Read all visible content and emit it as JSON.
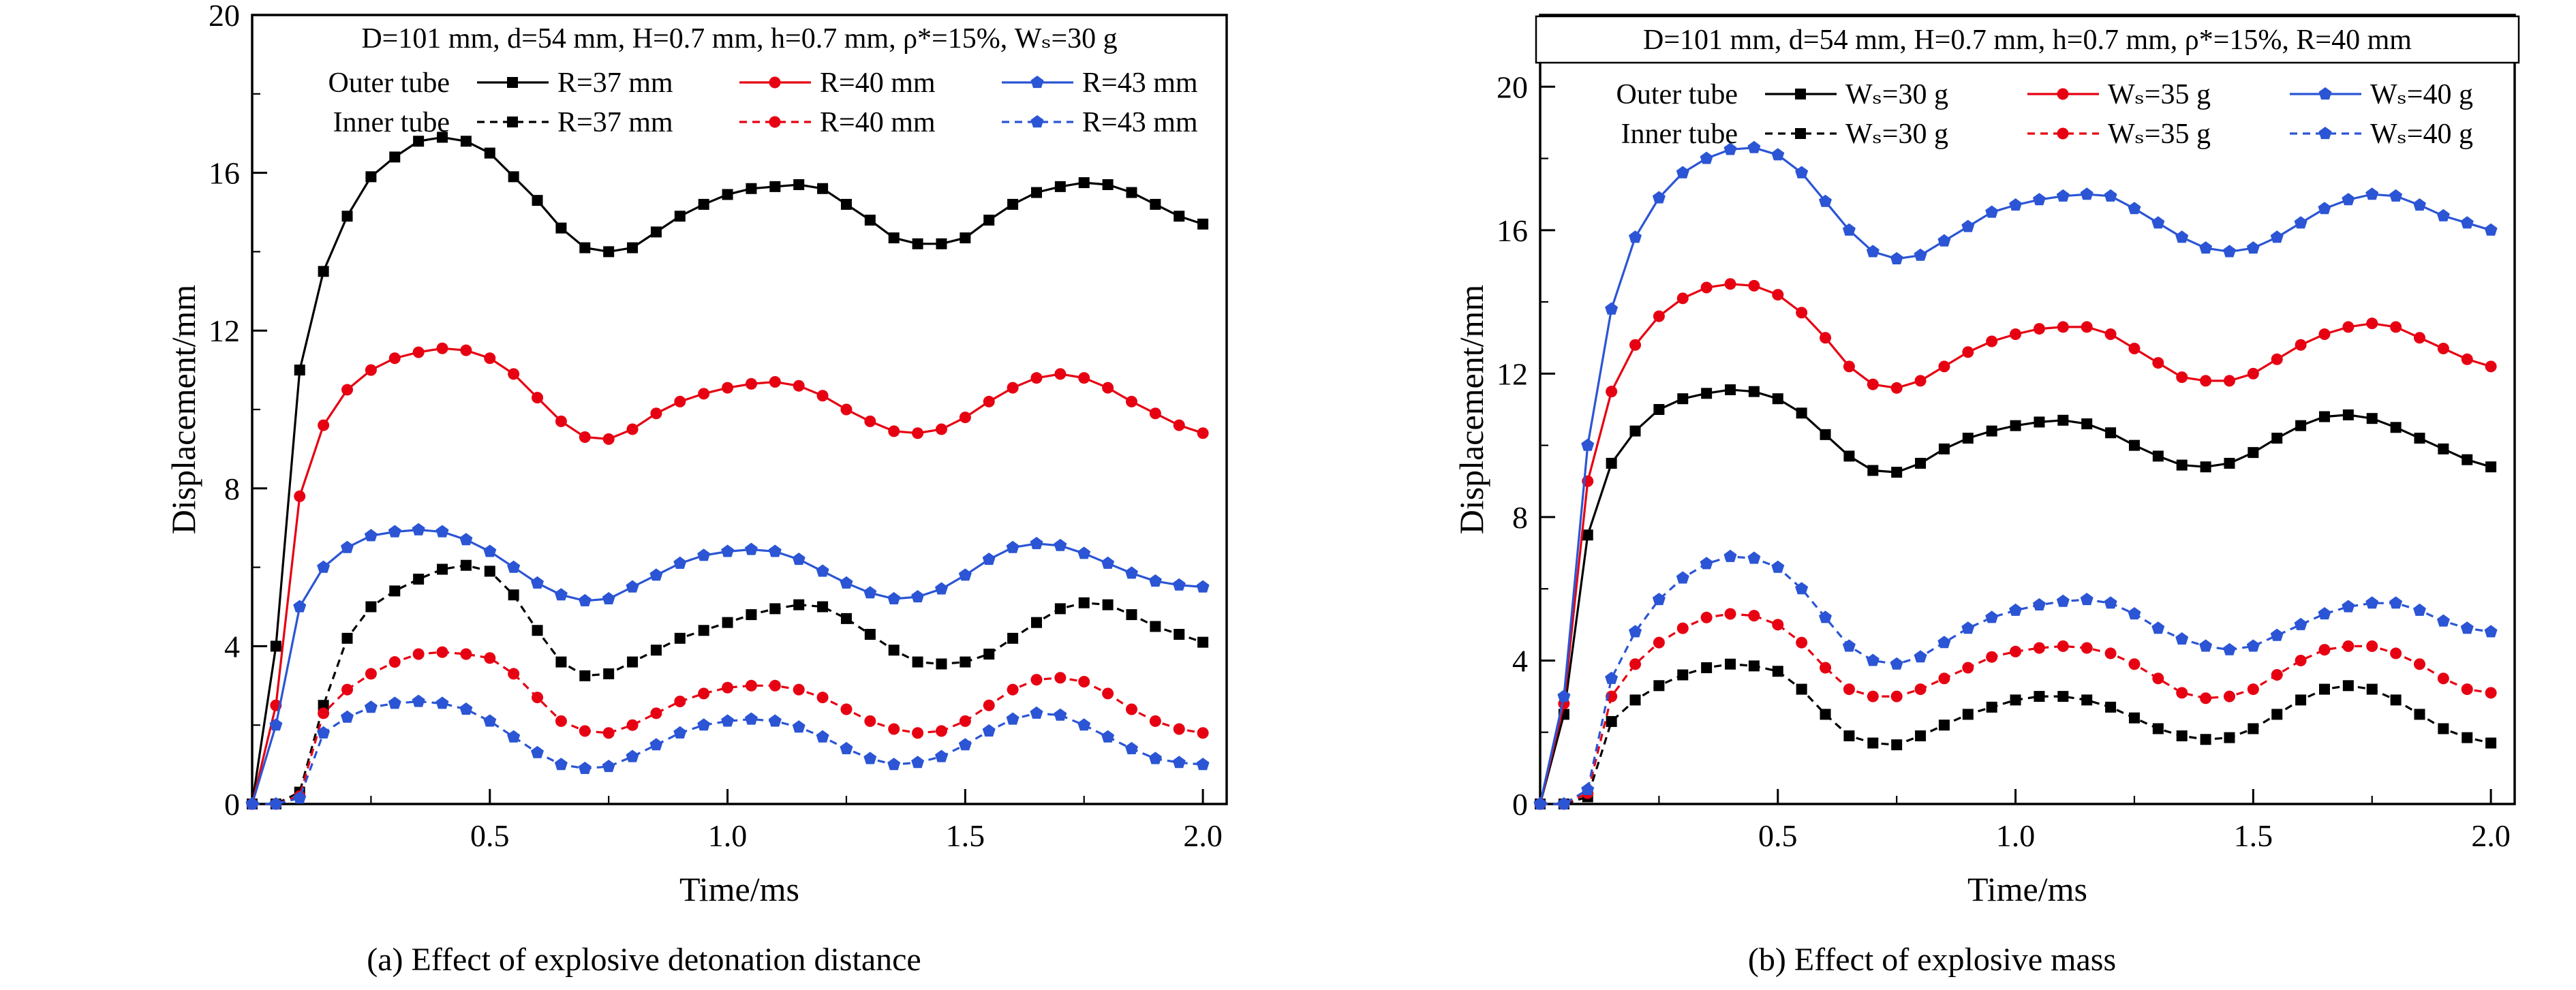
{
  "page": {
    "background": "#ffffff"
  },
  "chart_data": [
    {
      "id": "chart-a",
      "type": "line",
      "caption": "(a) Effect of explosive detonation distance",
      "params_text": "D=101 mm, d=54 mm, H=0.7 mm, h=0.7 mm, ρ*=15%, Wₛ=30 g",
      "legend_frame": false,
      "legend_position": "top-inside",
      "legend_groups": [
        "Outer tube",
        "Inner tube"
      ],
      "xlabel": "Time/ms",
      "ylabel": "Displacement/mm",
      "xlim": [
        0,
        2.05
      ],
      "ylim": [
        0,
        20
      ],
      "grid": false,
      "xticks": [
        0.5,
        1.0,
        1.5,
        2.0
      ],
      "xtick_labels": [
        "0.5",
        "1.0",
        "1.5",
        "2.0"
      ],
      "yticks": [
        0,
        4,
        8,
        12,
        16,
        20
      ],
      "ytick_labels": [
        "0",
        "4",
        "8",
        "12",
        "16",
        "20"
      ],
      "xminor": [
        0.25,
        0.75,
        1.25,
        1.75
      ],
      "yminor": [
        2,
        6,
        10,
        14,
        18
      ],
      "x": [
        0,
        0.05,
        0.1,
        0.15,
        0.2,
        0.25,
        0.3,
        0.35,
        0.4,
        0.45,
        0.5,
        0.55,
        0.6,
        0.65,
        0.7,
        0.75,
        0.8,
        0.85,
        0.9,
        0.95,
        1.0,
        1.05,
        1.1,
        1.15,
        1.2,
        1.25,
        1.3,
        1.35,
        1.4,
        1.45,
        1.5,
        1.55,
        1.6,
        1.65,
        1.7,
        1.75,
        1.8,
        1.85,
        1.9,
        1.95,
        2.0
      ],
      "series": [
        {
          "name": "outer-tube-R37",
          "legend_label": "R=37 mm",
          "color": "#000000",
          "marker": "square",
          "dashed": false,
          "y": [
            0,
            4.0,
            11.0,
            13.5,
            14.9,
            15.9,
            16.4,
            16.8,
            16.9,
            16.8,
            16.5,
            15.9,
            15.3,
            14.6,
            14.1,
            14.0,
            14.1,
            14.5,
            14.9,
            15.2,
            15.45,
            15.6,
            15.65,
            15.7,
            15.6,
            15.2,
            14.8,
            14.35,
            14.2,
            14.2,
            14.35,
            14.8,
            15.2,
            15.5,
            15.65,
            15.75,
            15.7,
            15.5,
            15.2,
            14.9,
            14.7
          ]
        },
        {
          "name": "outer-tube-R40",
          "legend_label": "R=40 mm",
          "color": "#e60012",
          "marker": "circle",
          "dashed": false,
          "y": [
            0,
            2.5,
            7.8,
            9.6,
            10.5,
            11.0,
            11.3,
            11.45,
            11.55,
            11.5,
            11.3,
            10.9,
            10.3,
            9.7,
            9.3,
            9.25,
            9.5,
            9.9,
            10.2,
            10.4,
            10.55,
            10.65,
            10.7,
            10.6,
            10.35,
            10.0,
            9.7,
            9.45,
            9.4,
            9.5,
            9.8,
            10.2,
            10.55,
            10.8,
            10.9,
            10.8,
            10.55,
            10.2,
            9.9,
            9.6,
            9.4
          ]
        },
        {
          "name": "outer-tube-R43",
          "legend_label": "R=43 mm",
          "color": "#2b55d4",
          "marker": "pentagon",
          "dashed": false,
          "y": [
            0,
            2.0,
            5.0,
            6.0,
            6.5,
            6.8,
            6.9,
            6.95,
            6.9,
            6.7,
            6.4,
            6.0,
            5.6,
            5.3,
            5.15,
            5.2,
            5.5,
            5.8,
            6.1,
            6.3,
            6.4,
            6.45,
            6.4,
            6.2,
            5.9,
            5.6,
            5.35,
            5.2,
            5.25,
            5.45,
            5.8,
            6.2,
            6.5,
            6.6,
            6.55,
            6.35,
            6.1,
            5.85,
            5.65,
            5.55,
            5.5
          ]
        },
        {
          "name": "inner-tube-R37",
          "legend_label": "R=37 mm",
          "color": "#000000",
          "marker": "square",
          "dashed": true,
          "y": [
            0,
            0,
            0.3,
            2.5,
            4.2,
            5.0,
            5.4,
            5.7,
            5.95,
            6.05,
            5.9,
            5.3,
            4.4,
            3.6,
            3.25,
            3.3,
            3.6,
            3.9,
            4.2,
            4.4,
            4.6,
            4.8,
            4.95,
            5.05,
            5.0,
            4.7,
            4.3,
            3.9,
            3.6,
            3.55,
            3.6,
            3.8,
            4.2,
            4.6,
            4.95,
            5.1,
            5.05,
            4.8,
            4.5,
            4.3,
            4.1
          ]
        },
        {
          "name": "inner-tube-R40",
          "legend_label": "R=40 mm",
          "color": "#e60012",
          "marker": "circle",
          "dashed": true,
          "y": [
            0,
            0,
            0.2,
            2.3,
            2.9,
            3.3,
            3.6,
            3.8,
            3.85,
            3.8,
            3.7,
            3.3,
            2.7,
            2.1,
            1.85,
            1.8,
            2.0,
            2.3,
            2.6,
            2.8,
            2.95,
            3.0,
            3.0,
            2.9,
            2.7,
            2.4,
            2.1,
            1.9,
            1.8,
            1.85,
            2.1,
            2.5,
            2.9,
            3.15,
            3.2,
            3.1,
            2.8,
            2.4,
            2.1,
            1.9,
            1.8
          ]
        },
        {
          "name": "inner-tube-R43",
          "legend_label": "R=43 mm",
          "color": "#2b55d4",
          "marker": "pentagon",
          "dashed": true,
          "y": [
            0,
            0,
            0.15,
            1.8,
            2.2,
            2.45,
            2.55,
            2.6,
            2.55,
            2.4,
            2.1,
            1.7,
            1.3,
            1.0,
            0.9,
            0.95,
            1.2,
            1.5,
            1.8,
            2.0,
            2.1,
            2.15,
            2.1,
            1.95,
            1.7,
            1.4,
            1.15,
            1.0,
            1.05,
            1.2,
            1.5,
            1.85,
            2.15,
            2.3,
            2.25,
            2.0,
            1.7,
            1.4,
            1.15,
            1.05,
            1.0
          ]
        }
      ]
    },
    {
      "id": "chart-b",
      "type": "line",
      "caption": "(b) Effect of explosive mass",
      "params_text": "D=101 mm, d=54 mm, H=0.7 mm, h=0.7 mm, ρ*=15%, R=40 mm",
      "legend_frame": true,
      "legend_position": "top-inside",
      "legend_groups": [
        "Outer tube",
        "Inner tube"
      ],
      "xlabel": "Time/ms",
      "ylabel": "Displacement/mm",
      "xlim": [
        0,
        2.05
      ],
      "ylim": [
        0,
        22
      ],
      "grid": false,
      "xticks": [
        0.5,
        1.0,
        1.5,
        2.0
      ],
      "xtick_labels": [
        "0.5",
        "1.0",
        "1.5",
        "2.0"
      ],
      "yticks": [
        0,
        4,
        8,
        12,
        16,
        20
      ],
      "ytick_labels": [
        "0",
        "4",
        "8",
        "12",
        "16",
        "20"
      ],
      "xminor": [
        0.25,
        0.75,
        1.25,
        1.75
      ],
      "yminor": [
        2,
        6,
        10,
        14,
        18
      ],
      "x": [
        0,
        0.05,
        0.1,
        0.15,
        0.2,
        0.25,
        0.3,
        0.35,
        0.4,
        0.45,
        0.5,
        0.55,
        0.6,
        0.65,
        0.7,
        0.75,
        0.8,
        0.85,
        0.9,
        0.95,
        1.0,
        1.05,
        1.1,
        1.15,
        1.2,
        1.25,
        1.3,
        1.35,
        1.4,
        1.45,
        1.5,
        1.55,
        1.6,
        1.65,
        1.7,
        1.75,
        1.8,
        1.85,
        1.9,
        1.95,
        2.0
      ],
      "series": [
        {
          "name": "outer-tube-Ws30",
          "legend_label": "Wₛ=30 g",
          "color": "#000000",
          "marker": "square",
          "dashed": false,
          "y": [
            0,
            2.5,
            7.5,
            9.5,
            10.4,
            11.0,
            11.3,
            11.45,
            11.55,
            11.5,
            11.3,
            10.9,
            10.3,
            9.7,
            9.3,
            9.25,
            9.5,
            9.9,
            10.2,
            10.4,
            10.55,
            10.65,
            10.7,
            10.6,
            10.35,
            10.0,
            9.7,
            9.45,
            9.4,
            9.5,
            9.8,
            10.2,
            10.55,
            10.8,
            10.85,
            10.75,
            10.5,
            10.2,
            9.9,
            9.6,
            9.4
          ]
        },
        {
          "name": "outer-tube-Ws35",
          "legend_label": "Wₛ=35 g",
          "color": "#e60012",
          "marker": "circle",
          "dashed": false,
          "y": [
            0,
            2.8,
            9.0,
            11.5,
            12.8,
            13.6,
            14.1,
            14.4,
            14.5,
            14.45,
            14.2,
            13.7,
            13.0,
            12.2,
            11.7,
            11.6,
            11.8,
            12.2,
            12.6,
            12.9,
            13.1,
            13.25,
            13.3,
            13.3,
            13.1,
            12.7,
            12.3,
            11.9,
            11.8,
            11.8,
            12.0,
            12.4,
            12.8,
            13.1,
            13.3,
            13.4,
            13.3,
            13.0,
            12.7,
            12.4,
            12.2
          ]
        },
        {
          "name": "outer-tube-Ws40",
          "legend_label": "Wₛ=40 g",
          "color": "#2b55d4",
          "marker": "pentagon",
          "dashed": false,
          "y": [
            0,
            3.0,
            10.0,
            13.8,
            15.8,
            16.9,
            17.6,
            18.0,
            18.25,
            18.3,
            18.1,
            17.6,
            16.8,
            16.0,
            15.4,
            15.2,
            15.3,
            15.7,
            16.1,
            16.5,
            16.7,
            16.85,
            16.95,
            17.0,
            16.95,
            16.6,
            16.2,
            15.8,
            15.5,
            15.4,
            15.5,
            15.8,
            16.2,
            16.6,
            16.85,
            17.0,
            16.95,
            16.7,
            16.4,
            16.2,
            16.0
          ]
        },
        {
          "name": "inner-tube-Ws30",
          "legend_label": "Wₛ=30 g",
          "color": "#000000",
          "marker": "square",
          "dashed": true,
          "y": [
            0,
            0,
            0.2,
            2.3,
            2.9,
            3.3,
            3.6,
            3.8,
            3.9,
            3.85,
            3.7,
            3.2,
            2.5,
            1.9,
            1.7,
            1.65,
            1.9,
            2.2,
            2.5,
            2.7,
            2.9,
            3.0,
            3.0,
            2.9,
            2.7,
            2.4,
            2.1,
            1.9,
            1.8,
            1.85,
            2.1,
            2.5,
            2.9,
            3.2,
            3.3,
            3.2,
            2.9,
            2.5,
            2.1,
            1.85,
            1.7
          ]
        },
        {
          "name": "inner-tube-Ws35",
          "legend_label": "Wₛ=35 g",
          "color": "#e60012",
          "marker": "circle",
          "dashed": true,
          "y": [
            0,
            0,
            0.3,
            3.0,
            3.9,
            4.5,
            4.9,
            5.2,
            5.3,
            5.25,
            5.0,
            4.5,
            3.8,
            3.2,
            3.0,
            3.0,
            3.2,
            3.5,
            3.8,
            4.1,
            4.25,
            4.35,
            4.4,
            4.35,
            4.2,
            3.9,
            3.5,
            3.1,
            2.95,
            3.0,
            3.2,
            3.6,
            4.0,
            4.3,
            4.4,
            4.4,
            4.2,
            3.9,
            3.5,
            3.2,
            3.1
          ]
        },
        {
          "name": "inner-tube-Ws40",
          "legend_label": "Wₛ=40 g",
          "color": "#2b55d4",
          "marker": "pentagon",
          "dashed": true,
          "y": [
            0,
            0,
            0.4,
            3.5,
            4.8,
            5.7,
            6.3,
            6.7,
            6.9,
            6.85,
            6.6,
            6.0,
            5.2,
            4.4,
            4.0,
            3.9,
            4.1,
            4.5,
            4.9,
            5.2,
            5.4,
            5.55,
            5.65,
            5.7,
            5.6,
            5.3,
            4.9,
            4.6,
            4.4,
            4.3,
            4.4,
            4.7,
            5.0,
            5.3,
            5.5,
            5.6,
            5.6,
            5.4,
            5.1,
            4.9,
            4.8
          ]
        }
      ]
    }
  ]
}
